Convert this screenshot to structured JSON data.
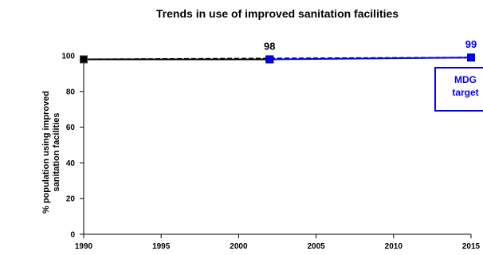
{
  "chart_data": {
    "type": "line",
    "title": "Trends in use of improved sanitation facilities",
    "xlabel": "",
    "ylabel_lines": [
      "% population  using improved",
      "sanitation facilities"
    ],
    "xlim": [
      1990,
      2015
    ],
    "ylim": [
      0,
      100
    ],
    "x_ticks": [
      1990,
      1995,
      2000,
      2005,
      2010,
      2015
    ],
    "y_ticks": [
      0,
      20,
      40,
      60,
      80,
      100
    ],
    "grid": false,
    "series": [
      {
        "name": "",
        "color": "#000000",
        "dash": "solid",
        "marker": "square",
        "x": [
          1990,
          2002
        ],
        "y": [
          98,
          98
        ]
      },
      {
        "name": "",
        "color": "#0000ff",
        "dash": "solid",
        "marker": "square",
        "x": [
          2002,
          2015
        ],
        "y": [
          98,
          99
        ]
      },
      {
        "name": "",
        "color": "#000000",
        "dash": "dashed",
        "marker": "none",
        "x": [
          1990,
          2015
        ],
        "y": [
          98,
          99
        ]
      }
    ],
    "data_labels": [
      {
        "x": 2002,
        "y": 98,
        "text": "98",
        "color": "#000000"
      },
      {
        "x": 2015,
        "y": 99,
        "text": "99",
        "color": "#0000ff"
      }
    ],
    "annotation": {
      "lines": [
        "MDG",
        "target"
      ],
      "color": "#0000ff",
      "points_to": {
        "x": 2015,
        "y": 99
      }
    }
  }
}
